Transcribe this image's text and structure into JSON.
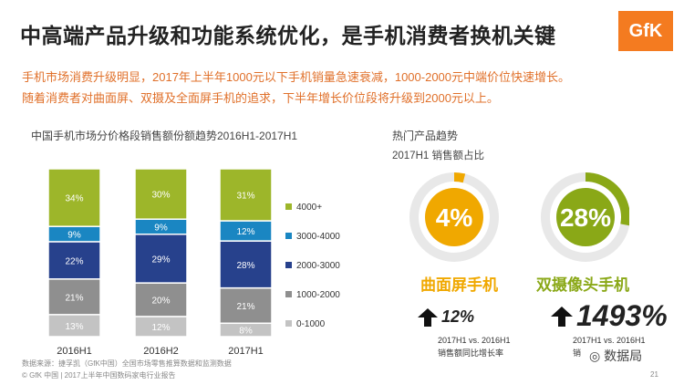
{
  "header": {
    "title": "中高端产品升级和功能系统优化，是手机消费者换机关键",
    "logo": "GfK",
    "lines": [
      "手机市场消费升级明显，2017年上半年1000元以下手机销量急速衰减，1000-2000元中端价位快速增长。",
      "随着消费者对曲面屏、双摄及全面屏手机的追求，下半年增长价位段将升级到2000元以上。"
    ]
  },
  "colors": {
    "c4000": "#9db62a",
    "c3000": "#1a86c2",
    "c2000": "#27418c",
    "c1000": "#8f8f8f",
    "c0": "#c3c3c3",
    "orange": "#f0a800",
    "green": "#8aa817"
  },
  "chart_data": {
    "type": "bar",
    "stacked": true,
    "title": "中国手机市场分价格段销售额份额趋势2016H1-2017H1",
    "categories": [
      "2016H1",
      "2016H2",
      "2017H1"
    ],
    "series": [
      {
        "name": "0-1000",
        "values": [
          13,
          12,
          8
        ]
      },
      {
        "name": "1000-2000",
        "values": [
          21,
          20,
          21
        ]
      },
      {
        "name": "2000-3000",
        "values": [
          22,
          29,
          28
        ]
      },
      {
        "name": "3000-4000",
        "values": [
          9,
          9,
          12
        ]
      },
      {
        "name": "4000+",
        "values": [
          34,
          30,
          31
        ]
      }
    ],
    "legend_order": [
      "4000+",
      "3000-4000",
      "2000-3000",
      "1000-2000",
      "0-1000"
    ],
    "legend_position": "right"
  },
  "hot": {
    "title": "热门产品趋势",
    "subtitle": "2017H1 销售额占比",
    "items": [
      {
        "pct_label": "4%",
        "value": 4,
        "label": "曲面屏手机",
        "growth": "12%"
      },
      {
        "pct_label": "28%",
        "value": 28,
        "label": "双摄像头手机",
        "growth": "1493%"
      }
    ],
    "note_line1": "2017H1 vs. 2016H1",
    "note_line2": "销售额同比增长率",
    "note2_line2": "销"
  },
  "footer": {
    "source": "数据来源：捷孚凯（GfK中国）全国市场零售推算数据和监测数据",
    "copyright": "© GfK 中国 | 2017上半年中国数码家电行业报告",
    "page": "21",
    "watermark": "数据局"
  }
}
